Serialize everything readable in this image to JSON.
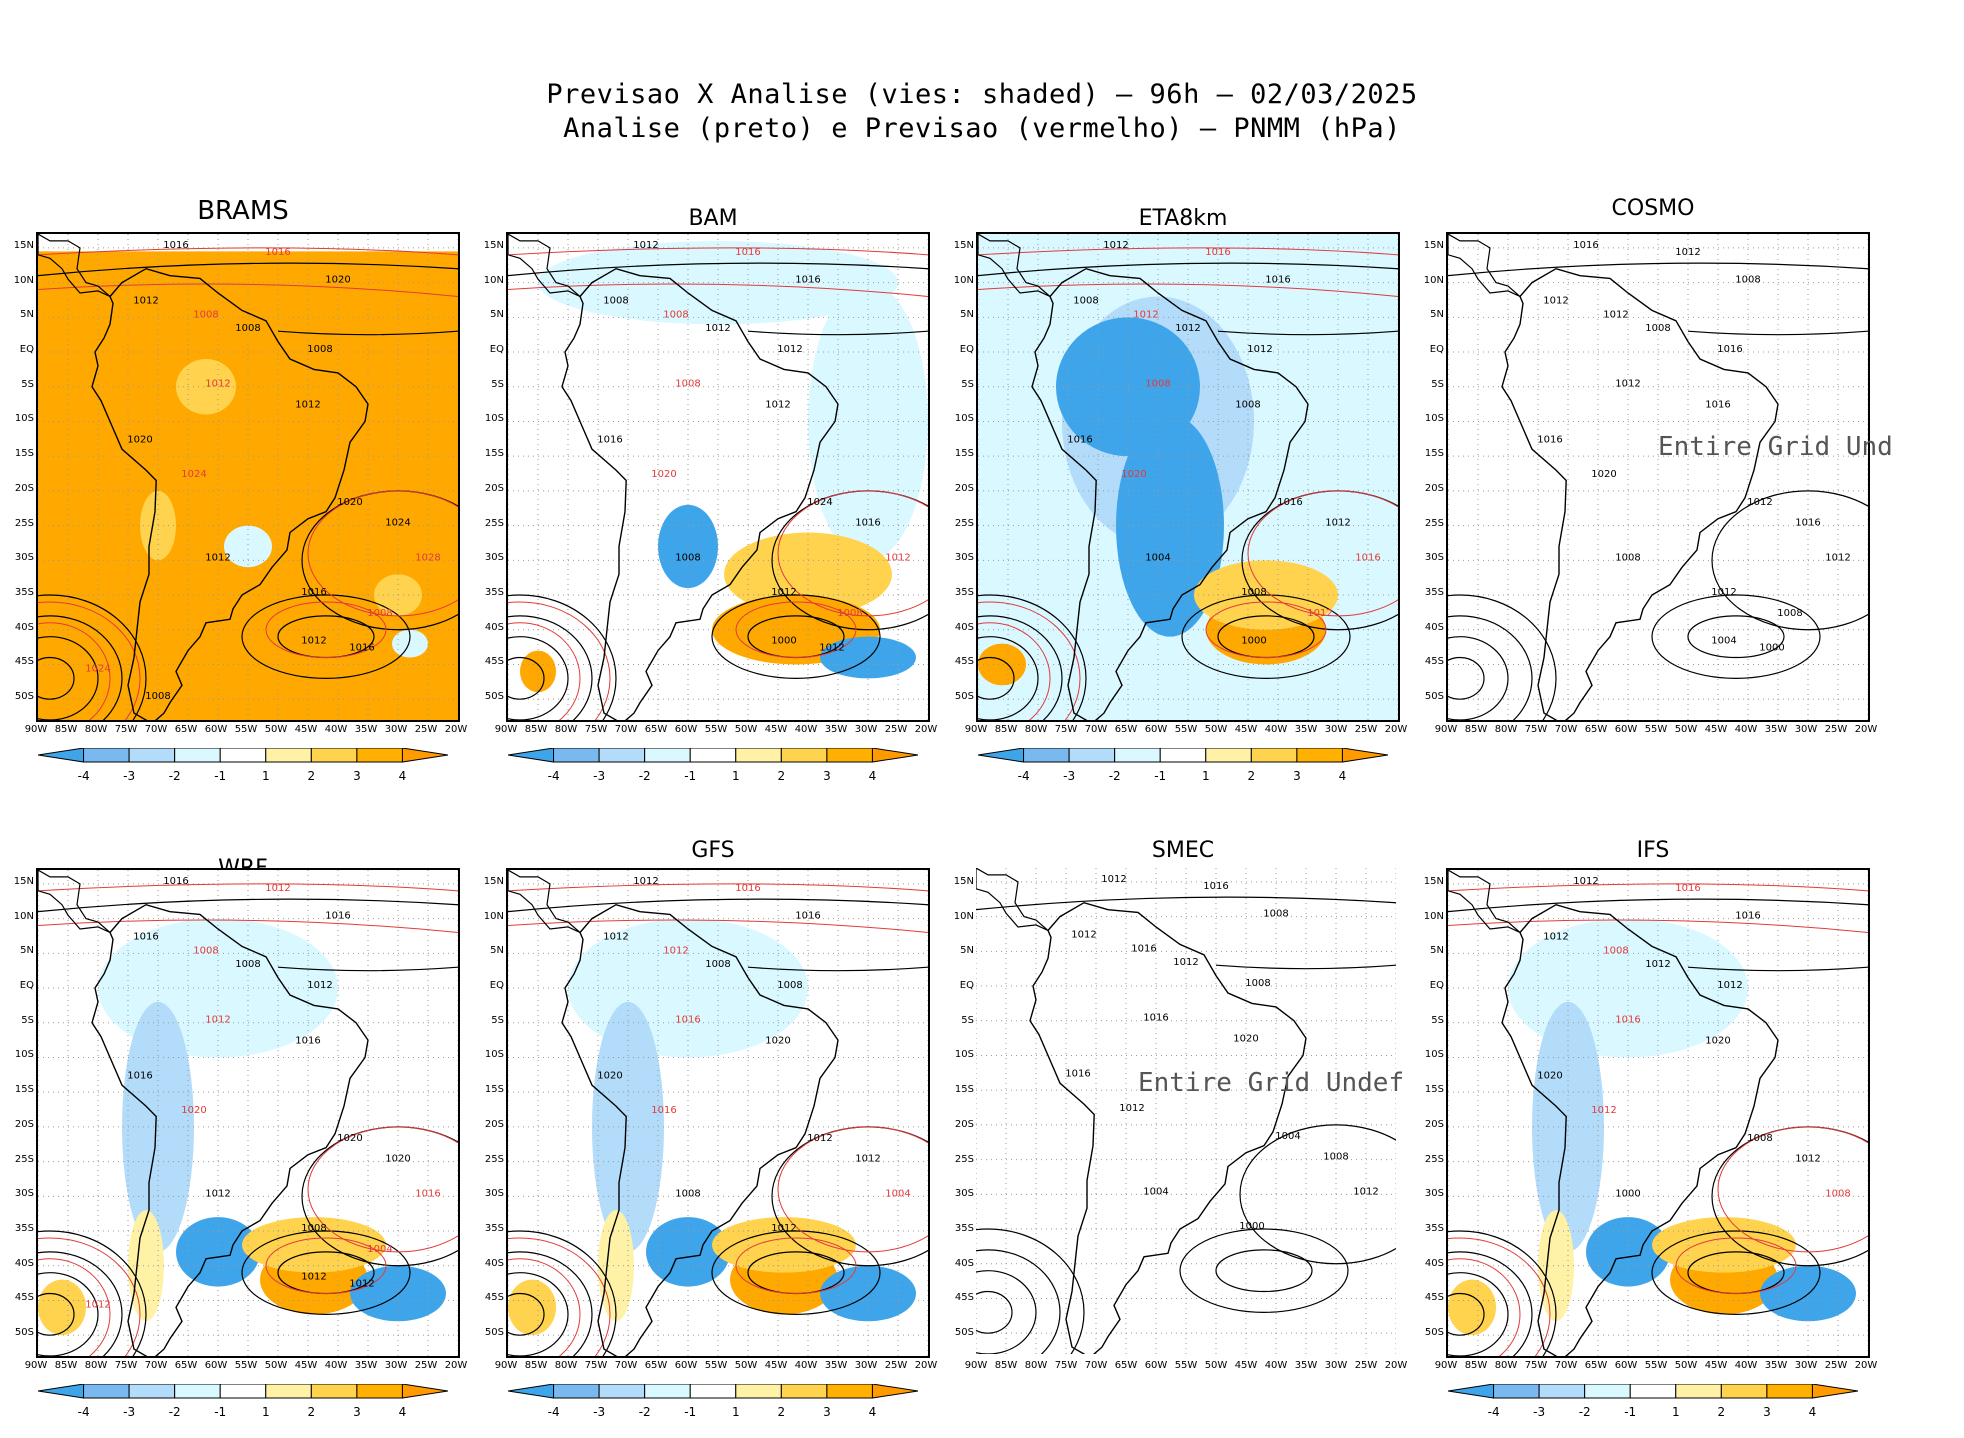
{
  "title": {
    "line1": "Previsao X Analise (vies: shaded) – 96h – 02/03/2025",
    "line2": "Analise (preto) e Previsao (vermelho) – PNMM (hPa)"
  },
  "lat_labels": [
    "15N",
    "10N",
    "5N",
    "EQ",
    "5S",
    "10S",
    "15S",
    "20S",
    "25S",
    "30S",
    "35S",
    "40S",
    "45S",
    "50S"
  ],
  "lon_labels": [
    "90W",
    "85W",
    "80W",
    "75W",
    "70W",
    "65W",
    "60W",
    "55W",
    "50W",
    "45W",
    "40W",
    "35W",
    "30W",
    "25W",
    "20W"
  ],
  "colorbar": {
    "labels": [
      "-4",
      "-3",
      "-2",
      "-1",
      "1",
      "2",
      "3",
      "4"
    ],
    "colors": [
      "#3fa5ea",
      "#7ab8f0",
      "#b3dcfb",
      "#d9f8ff",
      "#ffffff",
      "#fff2a6",
      "#ffd34d",
      "#ffb000",
      "#ff9a00"
    ]
  },
  "colors": {
    "analysis_line": "#000000",
    "forecast_line": "#e23a3a",
    "bias_strong_neg": "#3fa5ea",
    "bias_neg": "#b3dcfb",
    "bias_weak_neg": "#d9f8ff",
    "bias_weak_pos": "#fff2a6",
    "bias_pos": "#ffd34d",
    "bias_strong_pos": "#ffa800"
  },
  "panels": [
    {
      "id": "brams",
      "name": "BRAMS",
      "undefined": false,
      "bias": "strong-positive",
      "labels": [
        "1016",
        "1016",
        "1020",
        "1012",
        "1008",
        "1008",
        "1008",
        "1012",
        "1012",
        "1020",
        "1024",
        "1020",
        "1024",
        "1028",
        "1012",
        "1016",
        "1008",
        "1012",
        "1016",
        "1024",
        "1008"
      ]
    },
    {
      "id": "bam",
      "name": "BAM",
      "undefined": false,
      "bias": "negative-north-positive-atlantic",
      "labels": [
        "1012",
        "1016",
        "1016",
        "1008",
        "1008",
        "1012",
        "1012",
        "1008",
        "1012",
        "1016",
        "1020",
        "1024",
        "1016",
        "1012",
        "1008",
        "1012",
        "1008",
        "1000",
        "1012"
      ]
    },
    {
      "id": "eta8km",
      "name": "ETA8km",
      "undefined": false,
      "bias": "negative-continent",
      "labels": [
        "1012",
        "1016",
        "1016",
        "1008",
        "1012",
        "1012",
        "1012",
        "1008",
        "1008",
        "1016",
        "1020",
        "1016",
        "1012",
        "1016",
        "1004",
        "1008",
        "1012",
        "1000"
      ]
    },
    {
      "id": "cosmo",
      "name": "COSMO",
      "undefined": true,
      "undef_text": "Entire Grid Und",
      "labels": [
        "1016",
        "1012",
        "1008",
        "1012",
        "1012",
        "1008",
        "1016",
        "1012",
        "1016",
        "1016",
        "1020",
        "1012",
        "1016",
        "1012",
        "1008",
        "1012",
        "1008",
        "1004",
        "1000"
      ]
    },
    {
      "id": "wrf",
      "name": "WRF",
      "undefined": false,
      "bias": "mixed",
      "labels": [
        "1016",
        "1012",
        "1016",
        "1016",
        "1008",
        "1008",
        "1012",
        "1012",
        "1016",
        "1016",
        "1020",
        "1020",
        "1020",
        "1016",
        "1012",
        "1008",
        "1004",
        "1012",
        "1012",
        "1012"
      ]
    },
    {
      "id": "gfs",
      "name": "GFS",
      "undefined": false,
      "bias": "mixed",
      "labels": [
        "1012",
        "1016",
        "1016",
        "1012",
        "1012",
        "1008",
        "1008",
        "1016",
        "1020",
        "1020",
        "1016",
        "1012",
        "1012",
        "1004",
        "1008",
        "1012"
      ]
    },
    {
      "id": "smec",
      "name": "SMEC",
      "undefined": true,
      "undef_text": "Entire Grid Undef",
      "labels": [
        "1012",
        "1016",
        "1008",
        "1012",
        "1016",
        "1012",
        "1008",
        "1016",
        "1020",
        "1016",
        "1012",
        "1004",
        "1008",
        "1012",
        "1004",
        "1000"
      ]
    },
    {
      "id": "ifs",
      "name": "IFS",
      "undefined": false,
      "bias": "mixed",
      "labels": [
        "1012",
        "1016",
        "1016",
        "1012",
        "1008",
        "1012",
        "1012",
        "1016",
        "1020",
        "1020",
        "1012",
        "1008",
        "1012",
        "1008",
        "1000"
      ]
    }
  ]
}
